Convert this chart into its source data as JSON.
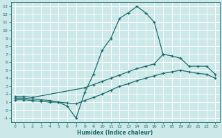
{
  "xlabel": "Humidex (Indice chaleur)",
  "bg_color": "#cce8e8",
  "grid_color": "#b8d8d8",
  "line_color": "#1a6b6b",
  "xlim": [
    -0.5,
    23.5
  ],
  "ylim": [
    -1.5,
    13.5
  ],
  "xticks": [
    0,
    1,
    2,
    3,
    4,
    5,
    6,
    7,
    8,
    9,
    10,
    11,
    12,
    13,
    14,
    15,
    16,
    17,
    18,
    19,
    20,
    21,
    22,
    23
  ],
  "yticks": [
    -1,
    0,
    1,
    2,
    3,
    4,
    5,
    6,
    7,
    8,
    9,
    10,
    11,
    12,
    13
  ],
  "line1_x": [
    0,
    1,
    2,
    3,
    4,
    5,
    6,
    7,
    8,
    9,
    10,
    11,
    12,
    13,
    14,
    15,
    16,
    17
  ],
  "line1_y": [
    1.5,
    1.5,
    1.4,
    1.3,
    1.2,
    1.0,
    0.5,
    -1.0,
    2.2,
    4.5,
    7.5,
    9.0,
    11.5,
    12.2,
    13.0,
    12.2,
    11.0,
    7.0
  ],
  "line2_x": [
    0,
    1,
    2,
    8,
    9,
    10,
    11,
    12,
    13,
    14,
    15,
    16,
    17,
    18,
    19,
    20,
    21,
    22,
    23
  ],
  "line2_y": [
    1.7,
    1.7,
    1.6,
    2.8,
    3.2,
    3.6,
    4.0,
    4.4,
    4.8,
    5.2,
    5.5,
    5.8,
    7.0,
    6.8,
    6.5,
    5.5,
    5.5,
    5.5,
    4.5
  ],
  "line3_x": [
    0,
    1,
    2,
    3,
    4,
    5,
    6,
    7,
    8,
    9,
    10,
    11,
    12,
    13,
    14,
    15,
    16,
    17,
    18,
    19,
    20,
    21,
    22,
    23
  ],
  "line3_y": [
    1.3,
    1.3,
    1.2,
    1.1,
    1.0,
    1.0,
    0.9,
    0.8,
    1.2,
    1.6,
    2.0,
    2.5,
    3.0,
    3.3,
    3.7,
    4.0,
    4.3,
    4.6,
    4.8,
    5.0,
    4.8,
    4.6,
    4.5,
    4.0
  ]
}
